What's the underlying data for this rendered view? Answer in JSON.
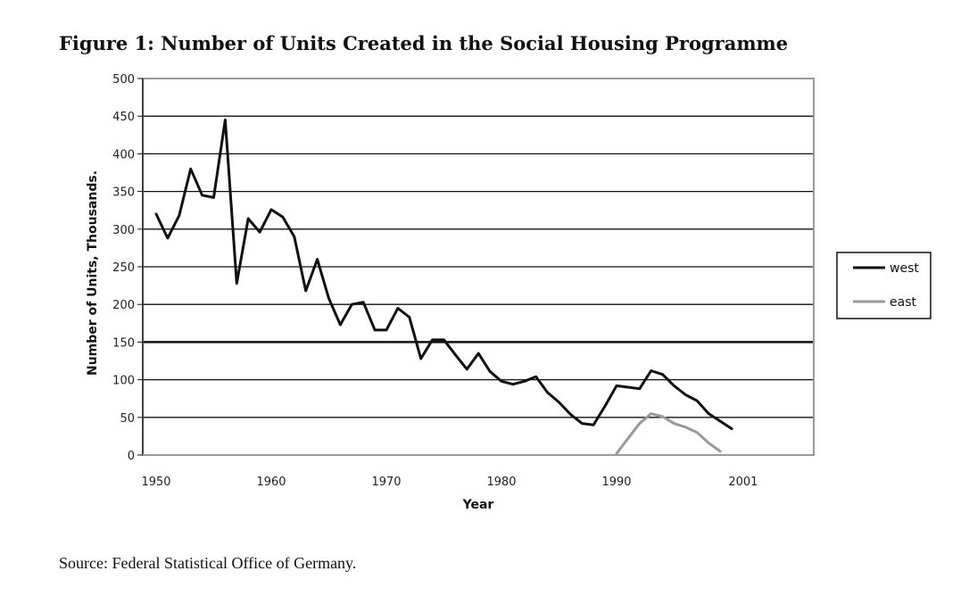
{
  "figure": {
    "title": "Figure 1: Number of Units Created in the Social Housing Programme",
    "source": "Source: Federal Statistical Office of Germany."
  },
  "chart_data": {
    "type": "line",
    "xlabel": "Year",
    "ylabel": "Number of Units, Thousands.",
    "ylim": [
      0,
      500
    ],
    "xlim": [
      1950,
      2008
    ],
    "y_ticks": [
      0,
      50,
      100,
      150,
      200,
      250,
      300,
      350,
      400,
      450,
      500
    ],
    "x_tick_labels": [
      {
        "value": 1950,
        "label": "1950"
      },
      {
        "value": 1960,
        "label": "1960"
      },
      {
        "value": 1970,
        "label": "1970"
      },
      {
        "value": 1980,
        "label": "1980"
      },
      {
        "value": 1990,
        "label": "1990"
      },
      {
        "value": 2001,
        "label": "2001"
      }
    ],
    "grid": true,
    "emphasized_gridline": 150,
    "legend_position": "right",
    "series": [
      {
        "name": "west",
        "color": "#111111",
        "x": [
          1950,
          1951,
          1952,
          1953,
          1954,
          1955,
          1956,
          1957,
          1958,
          1959,
          1960,
          1961,
          1962,
          1963,
          1964,
          1965,
          1966,
          1967,
          1968,
          1969,
          1970,
          1971,
          1972,
          1973,
          1974,
          1975,
          1976,
          1977,
          1978,
          1979,
          1980,
          1981,
          1982,
          1983,
          1984,
          1985,
          1986,
          1987,
          1988,
          1989,
          1990,
          1991,
          1992,
          1993,
          1994,
          1995,
          1996,
          1997,
          1998,
          1999,
          2000
        ],
        "values": [
          320,
          288,
          318,
          380,
          345,
          342,
          445,
          228,
          314,
          296,
          326,
          316,
          290,
          218,
          260,
          208,
          173,
          200,
          203,
          166,
          166,
          195,
          183,
          128,
          153,
          153,
          133,
          114,
          135,
          111,
          98,
          94,
          98,
          104,
          83,
          70,
          54,
          42,
          40,
          65,
          92,
          90,
          88,
          112,
          107,
          92,
          80,
          72,
          55,
          45,
          35
        ]
      },
      {
        "name": "east",
        "color": "#999999",
        "x": [
          1990,
          1991,
          1992,
          1993,
          1994,
          1995,
          1996,
          1997,
          1998,
          1999
        ],
        "values": [
          2,
          22,
          42,
          55,
          51,
          42,
          37,
          30,
          16,
          5
        ]
      }
    ]
  }
}
